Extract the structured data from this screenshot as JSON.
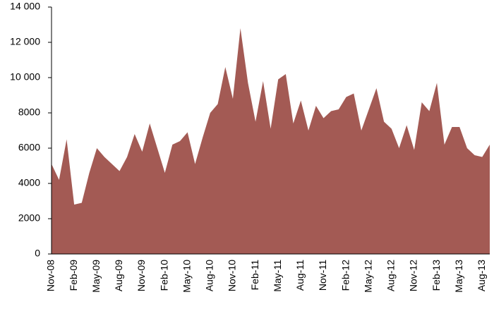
{
  "chart_data": {
    "type": "area",
    "color": "#a35a54",
    "categories": [
      "Nov-08",
      null,
      null,
      "Feb-09",
      null,
      null,
      "May-09",
      null,
      null,
      "Aug-09",
      null,
      null,
      "Nov-09",
      null,
      null,
      "Feb-10",
      null,
      null,
      "May-10",
      null,
      null,
      "Aug-10",
      null,
      null,
      "Nov-10",
      null,
      null,
      "Feb-11",
      null,
      null,
      "May-11",
      null,
      null,
      "Aug-11",
      null,
      null,
      "Nov-11",
      null,
      null,
      "Feb-12",
      null,
      null,
      "May-12",
      null,
      null,
      "Aug-12",
      null,
      null,
      "Nov-12",
      null,
      null,
      "Feb-13",
      null,
      null,
      "May-13",
      null,
      null,
      "Aug-13",
      null
    ],
    "values": [
      5100,
      4200,
      6500,
      2800,
      2900,
      4600,
      6000,
      5500,
      5100,
      4700,
      5500,
      6800,
      5800,
      7400,
      6000,
      4600,
      6200,
      6400,
      6900,
      5100,
      6600,
      8000,
      8500,
      10600,
      8800,
      12800,
      9700,
      7500,
      9800,
      7100,
      9900,
      10200,
      7400,
      8700,
      7000,
      8400,
      7700,
      8100,
      8200,
      8900,
      9100,
      7000,
      8200,
      9400,
      7500,
      7100,
      6000,
      7300,
      5900,
      8600,
      8100,
      9700,
      6200,
      7200,
      7200,
      6000,
      5600,
      5500,
      6200
    ],
    "ylim": [
      0,
      14000
    ],
    "yticks": [
      0,
      2000,
      4000,
      6000,
      8000,
      {
        "value": 10000,
        "label": "10 000"
      },
      {
        "value": 12000,
        "label": "12 000"
      },
      {
        "value": 14000,
        "label": "14 000"
      }
    ]
  }
}
